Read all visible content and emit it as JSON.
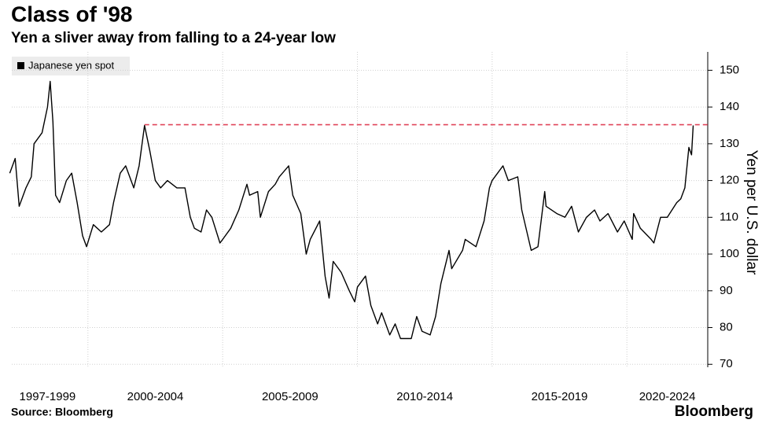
{
  "chart_data": {
    "type": "line",
    "title": "Class of '98",
    "subtitle": "Yen a sliver away from falling to a 24-year low",
    "source": "Source: Bloomberg",
    "logo": "Bloomberg",
    "y_label": "Yen per U.S. dollar",
    "x": [
      1997.1,
      1997.3,
      1997.45,
      1997.7,
      1997.9,
      1998.0,
      1998.3,
      1998.5,
      1998.6,
      1998.7,
      1998.8,
      1998.95,
      1999.2,
      1999.4,
      1999.6,
      1999.8,
      1999.95,
      2000.2,
      2000.5,
      2000.8,
      2000.95,
      2001.2,
      2001.4,
      2001.7,
      2001.9,
      2002.1,
      2002.3,
      2002.5,
      2002.7,
      2002.95,
      2003.3,
      2003.6,
      2003.8,
      2003.95,
      2004.2,
      2004.4,
      2004.6,
      2004.9,
      2005.0,
      2005.3,
      2005.6,
      2005.9,
      2006.0,
      2006.3,
      2006.4,
      2006.7,
      2006.95,
      2007.1,
      2007.45,
      2007.6,
      2007.9,
      2008.1,
      2008.25,
      2008.6,
      2008.8,
      2008.95,
      2009.1,
      2009.4,
      2009.7,
      2009.9,
      2010.0,
      2010.3,
      2010.5,
      2010.75,
      2010.9,
      2011.2,
      2011.4,
      2011.6,
      2011.8,
      2012.0,
      2012.2,
      2012.4,
      2012.7,
      2012.9,
      2013.1,
      2013.4,
      2013.5,
      2013.9,
      2014.0,
      2014.4,
      2014.7,
      2014.9,
      2015.0,
      2015.4,
      2015.6,
      2015.95,
      2016.1,
      2016.45,
      2016.7,
      2016.95,
      2017.0,
      2017.4,
      2017.7,
      2017.95,
      2018.2,
      2018.5,
      2018.8,
      2019.0,
      2019.3,
      2019.65,
      2019.9,
      2020.2,
      2020.25,
      2020.5,
      2020.9,
      2021.0,
      2021.25,
      2021.5,
      2021.85,
      2022.0,
      2022.15,
      2022.3,
      2022.4,
      2022.46
    ],
    "series": [
      {
        "name": "Japanese yen spot",
        "color": "#000000",
        "values": [
          122,
          126,
          113,
          118,
          121,
          130,
          133,
          140,
          147,
          136,
          116,
          114,
          120,
          122,
          114,
          105,
          102,
          108,
          106,
          108,
          114,
          122,
          124,
          118,
          124,
          135,
          128,
          120,
          118,
          120,
          118,
          118,
          110,
          107,
          106,
          112,
          110,
          103,
          104,
          107,
          112,
          119,
          116,
          117,
          110,
          117,
          119,
          121,
          124,
          116,
          111,
          100,
          104,
          109,
          94,
          88,
          98,
          95,
          90,
          87,
          91,
          94,
          86,
          81,
          84,
          78,
          81,
          77,
          77,
          77,
          83,
          79,
          78,
          83,
          92,
          101,
          96,
          101,
          104,
          102,
          109,
          118,
          120,
          124,
          120,
          121,
          112,
          101,
          102,
          117,
          113,
          111,
          110,
          113,
          106,
          110,
          112,
          109,
          111,
          106,
          109,
          104,
          111,
          107,
          104,
          103,
          110,
          110,
          114,
          115,
          118,
          129,
          127,
          135
        ]
      }
    ],
    "xlim": [
      1997,
      2023
    ],
    "xticks": [
      2000,
      2005,
      2010,
      2015,
      2020
    ],
    "periods": [
      {
        "label": "1997-1999",
        "start": 1997,
        "end": 2000
      },
      {
        "label": "2000-2004",
        "start": 2000,
        "end": 2005
      },
      {
        "label": "2005-2009",
        "start": 2005,
        "end": 2010
      },
      {
        "label": "2010-2014",
        "start": 2010,
        "end": 2015
      },
      {
        "label": "2015-2019",
        "start": 2015,
        "end": 2020
      },
      {
        "label": "2020-2024",
        "start": 2020,
        "end": 2025
      }
    ],
    "ylim": [
      69.2,
      155
    ],
    "yticks": [
      70,
      80,
      90,
      100,
      110,
      120,
      130,
      140,
      150
    ],
    "grid": true,
    "reference_line": {
      "value": 135.2,
      "x_start": 2002.1,
      "color": "#e0455a"
    }
  }
}
